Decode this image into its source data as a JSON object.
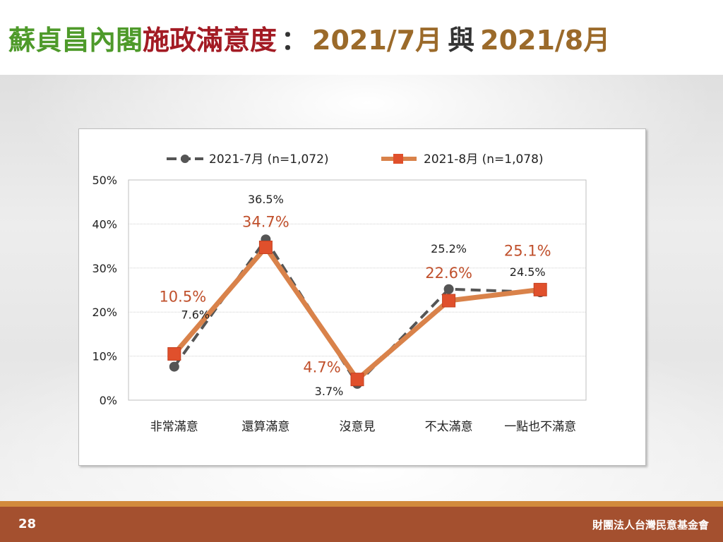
{
  "slide": {
    "title_part1": "蘇貞昌內閣",
    "title_part2": "施政滿意度",
    "title_colon": "：",
    "title_part3": "2021/7月",
    "title_part4": "與",
    "title_part5": "2021/8月",
    "page_number": "28",
    "organization": "財團法人台灣民意基金會"
  },
  "colors": {
    "title_green": "#4e9a2a",
    "title_red": "#a31b24",
    "title_brown": "#9b6a2a",
    "series_july": "#555555",
    "series_august": "#d9824a",
    "marker_august": "#e0502c",
    "label_august": "#c0502c",
    "footer": "#a4502f"
  },
  "chart_data": {
    "type": "line",
    "categories": [
      "非常滿意",
      "還算滿意",
      "沒意見",
      "不太滿意",
      "一點也不滿意"
    ],
    "yticks": [
      "0%",
      "10%",
      "20%",
      "30%",
      "40%",
      "50%"
    ],
    "ylim": [
      0,
      50
    ],
    "grid": true,
    "legend_position": "top",
    "series": [
      {
        "name": "2021-7月  (n=1,072)",
        "values": [
          7.6,
          36.5,
          3.7,
          25.2,
          24.5
        ],
        "labels": [
          "7.6%",
          "36.5%",
          "3.7%",
          "25.2%",
          "24.5%"
        ],
        "style": "dashed",
        "marker": "circle"
      },
      {
        "name": "2021-8月  (n=1,078)",
        "values": [
          10.5,
          34.7,
          4.7,
          22.6,
          25.1
        ],
        "labels": [
          "10.5%",
          "34.7%",
          "4.7%",
          "22.6%",
          "25.1%"
        ],
        "style": "solid",
        "marker": "square"
      }
    ]
  }
}
